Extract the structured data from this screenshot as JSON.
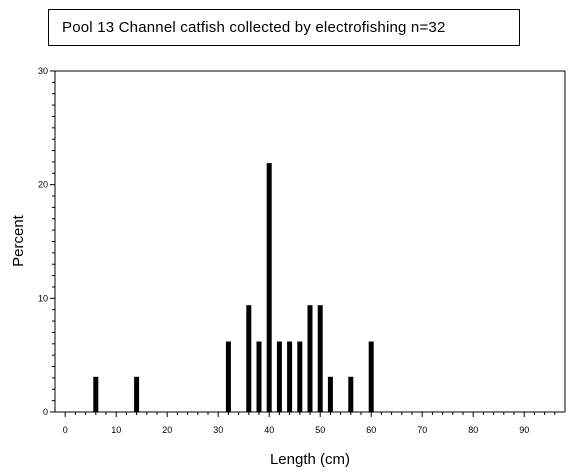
{
  "chart_data": {
    "type": "bar",
    "title": "Pool 13 Channel catfish collected by electrofishing n=32",
    "xlabel": "Length (cm)",
    "ylabel": "Percent",
    "xlim": [
      -2,
      98
    ],
    "ylim": [
      0,
      30
    ],
    "x_ticks": [
      "0",
      "10",
      "20",
      "30",
      "40",
      "50",
      "60",
      "70",
      "80",
      "90"
    ],
    "y_ticks": [
      "0",
      "10",
      "20",
      "30"
    ],
    "grid": false,
    "legend": "none",
    "bar_color": "#000000",
    "x": [
      6,
      14,
      32,
      36,
      38,
      40,
      42,
      44,
      46,
      48,
      50,
      52,
      56,
      60
    ],
    "values": [
      3.1,
      3.1,
      6.2,
      9.4,
      6.2,
      21.9,
      6.2,
      6.2,
      6.2,
      9.4,
      9.4,
      3.1,
      3.1,
      6.2
    ]
  }
}
